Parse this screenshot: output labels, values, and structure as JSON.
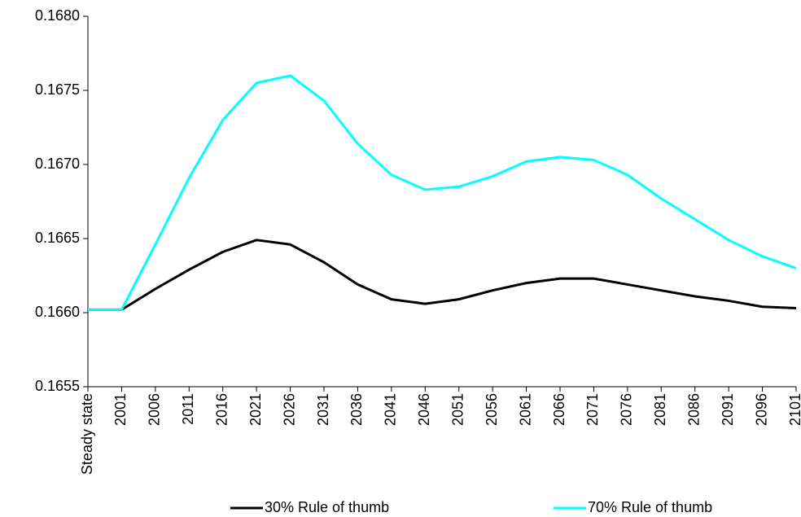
{
  "chart_data": {
    "type": "line",
    "categories": [
      "Steady state",
      "2001",
      "2006",
      "2011",
      "2016",
      "2021",
      "2026",
      "2031",
      "2036",
      "2041",
      "2046",
      "2051",
      "2056",
      "2061",
      "2066",
      "2071",
      "2076",
      "2081",
      "2086",
      "2091",
      "2096",
      "2101"
    ],
    "series": [
      {
        "name": "30% Rule of thumb",
        "color": "#000000",
        "values": [
          0.16602,
          0.16602,
          0.16616,
          0.16629,
          0.16641,
          0.16649,
          0.16646,
          0.16634,
          0.16619,
          0.16609,
          0.16606,
          0.16609,
          0.16615,
          0.1662,
          0.16623,
          0.16623,
          0.16619,
          0.16615,
          0.16611,
          0.16608,
          0.16604,
          0.16603
        ]
      },
      {
        "name": "70% Rule of thumb",
        "color": "#00ffff",
        "values": [
          0.16602,
          0.16602,
          0.16646,
          0.16691,
          0.1673,
          0.16755,
          0.1676,
          0.16743,
          0.16714,
          0.16693,
          0.16683,
          0.16685,
          0.16692,
          0.16702,
          0.16705,
          0.16703,
          0.16693,
          0.16677,
          0.16663,
          0.16649,
          0.16638,
          0.1663
        ]
      }
    ],
    "ylim": [
      0.1655,
      0.168
    ],
    "yticks": [
      {
        "value": 0.1655,
        "label": "0.1655"
      },
      {
        "value": 0.166,
        "label": "0.1660"
      },
      {
        "value": 0.1665,
        "label": "0.1665"
      },
      {
        "value": 0.167,
        "label": "0.1670"
      },
      {
        "value": 0.1675,
        "label": "0.1675"
      },
      {
        "value": 0.168,
        "label": "0.1680"
      }
    ],
    "grid": false,
    "legend": "bottom"
  }
}
